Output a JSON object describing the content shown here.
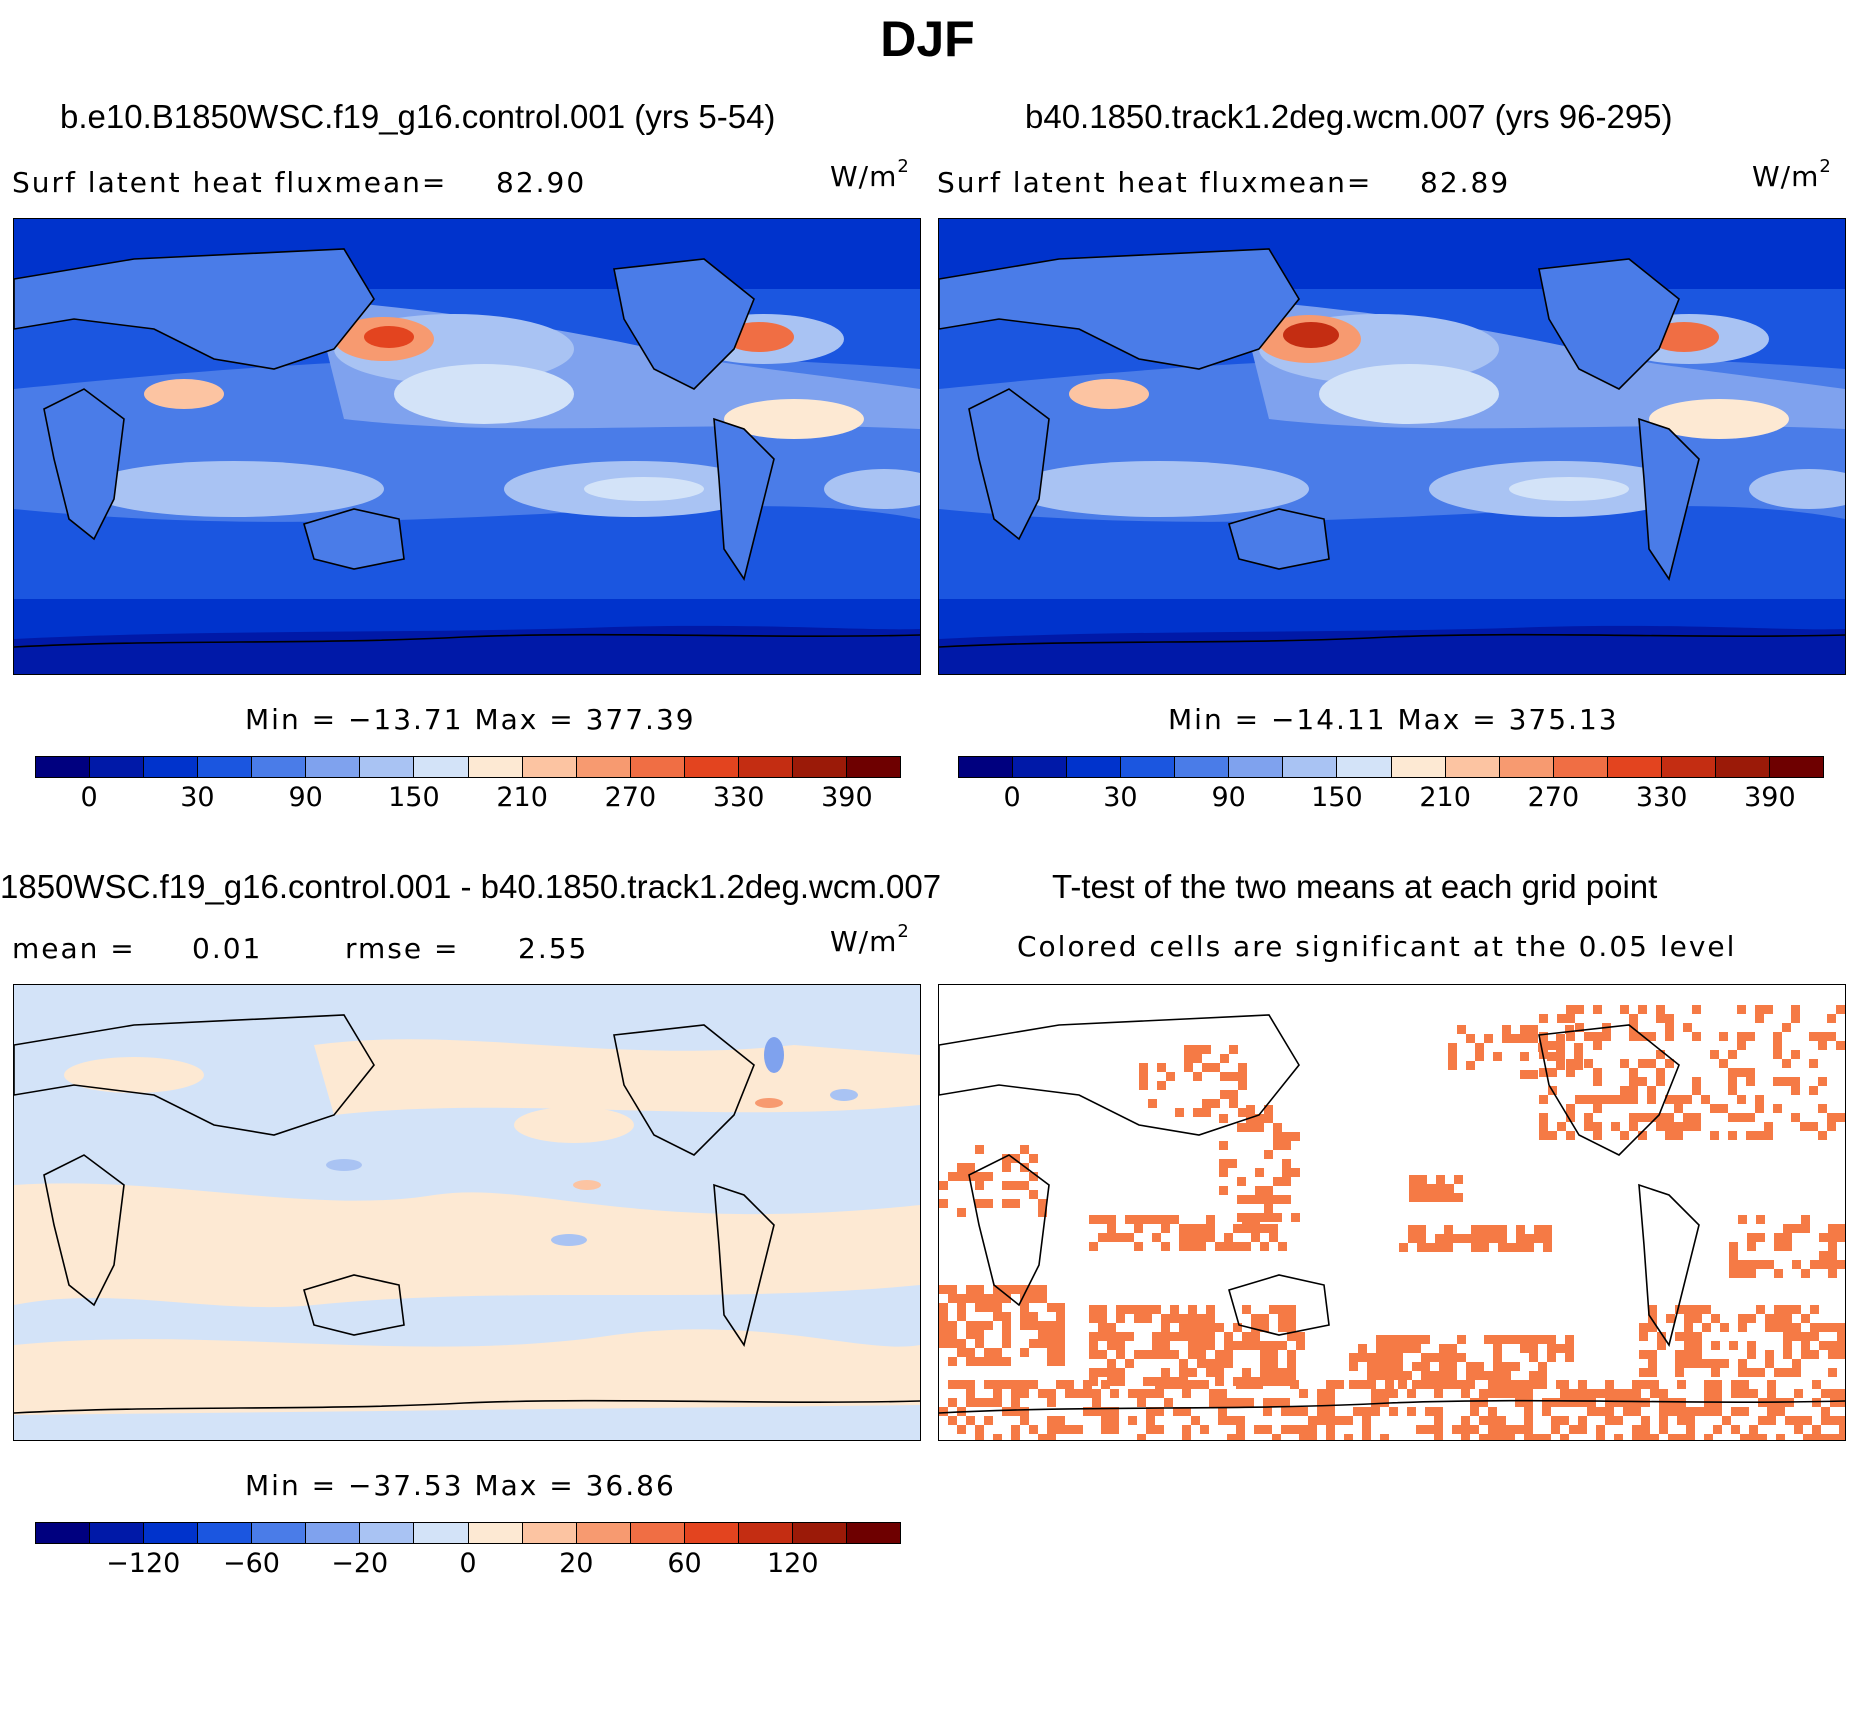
{
  "title": "DJF",
  "panels": [
    {
      "case_title": "b.e10.B1850WSC.f19_g16.control.001 (yrs 5-54)",
      "variable_label": "Surf latent heat fluxmean=",
      "mean_value": "82.90",
      "units": "W/m",
      "units_exp": "2",
      "min_max": "Min = −13.71 Max = 377.39"
    },
    {
      "case_title": "b40.1850.track1.2deg.wcm.007 (yrs 96-295)",
      "variable_label": "Surf latent heat fluxmean=",
      "mean_value": "82.89",
      "units": "W/m",
      "units_exp": "2",
      "min_max": "Min = −14.11 Max = 375.13"
    },
    {
      "case_title": "1850WSC.f19_g16.control.001 - b40.1850.track1.2deg.wcm.007",
      "mean_label": "mean =",
      "mean_value": "0.01",
      "rmse_label": "rmse =",
      "rmse_value": "2.55",
      "units": "W/m",
      "units_exp": "2",
      "min_max": "Min = −37.53 Max =   36.86"
    },
    {
      "case_title": "T-test of the two means at each grid point",
      "subtitle": "Colored cells are significant at the 0.05 level"
    }
  ],
  "chart_data": [
    {
      "type": "heatmap",
      "title": "b.e10.B1850WSC.f19_g16.control.001 (yrs 5-54)",
      "variable": "Surf latent heat flux",
      "mean": 82.9,
      "min": -13.71,
      "max": 377.39,
      "colorbar_ticks": [
        "0",
        "30",
        "90",
        "150",
        "210",
        "270",
        "330",
        "390"
      ],
      "colors": [
        "#00007f",
        "#0019a8",
        "#0033cc",
        "#1b56e0",
        "#4a7ce8",
        "#7fa2ee",
        "#a9c3f3",
        "#d3e3f8",
        "#fde9d3",
        "#fcc4a2",
        "#f79a70",
        "#f06e44",
        "#e3441f",
        "#c42d12",
        "#9b1a08",
        "#6e0000"
      ]
    },
    {
      "type": "heatmap",
      "title": "b40.1850.track1.2deg.wcm.007 (yrs 96-295)",
      "variable": "Surf latent heat flux",
      "mean": 82.89,
      "min": -14.11,
      "max": 375.13,
      "colorbar_ticks": [
        "0",
        "30",
        "90",
        "150",
        "210",
        "270",
        "330",
        "390"
      ],
      "colors": [
        "#00007f",
        "#0019a8",
        "#0033cc",
        "#1b56e0",
        "#4a7ce8",
        "#7fa2ee",
        "#a9c3f3",
        "#d3e3f8",
        "#fde9d3",
        "#fcc4a2",
        "#f79a70",
        "#f06e44",
        "#e3441f",
        "#c42d12",
        "#9b1a08",
        "#6e0000"
      ]
    },
    {
      "type": "heatmap",
      "title": "1850WSC.f19_g16.control.001 - b40.1850.track1.2deg.wcm.007",
      "mean": 0.01,
      "rmse": 2.55,
      "min": -37.53,
      "max": 36.86,
      "colorbar_ticks": [
        "−120",
        "−60",
        "−20",
        "0",
        "20",
        "60",
        "120"
      ],
      "colors": [
        "#00007f",
        "#0019a8",
        "#0033cc",
        "#1b56e0",
        "#4a7ce8",
        "#7fa2ee",
        "#a9c3f3",
        "#d3e3f8",
        "#fde9d3",
        "#fcc4a2",
        "#f79a70",
        "#f06e44",
        "#e3441f",
        "#c42d12",
        "#9b1a08",
        "#6e0000"
      ]
    },
    {
      "type": "heatmap",
      "title": "T-test of the two means at each grid point",
      "significance_level": 0.05,
      "significant_color": "#f57a45"
    }
  ]
}
